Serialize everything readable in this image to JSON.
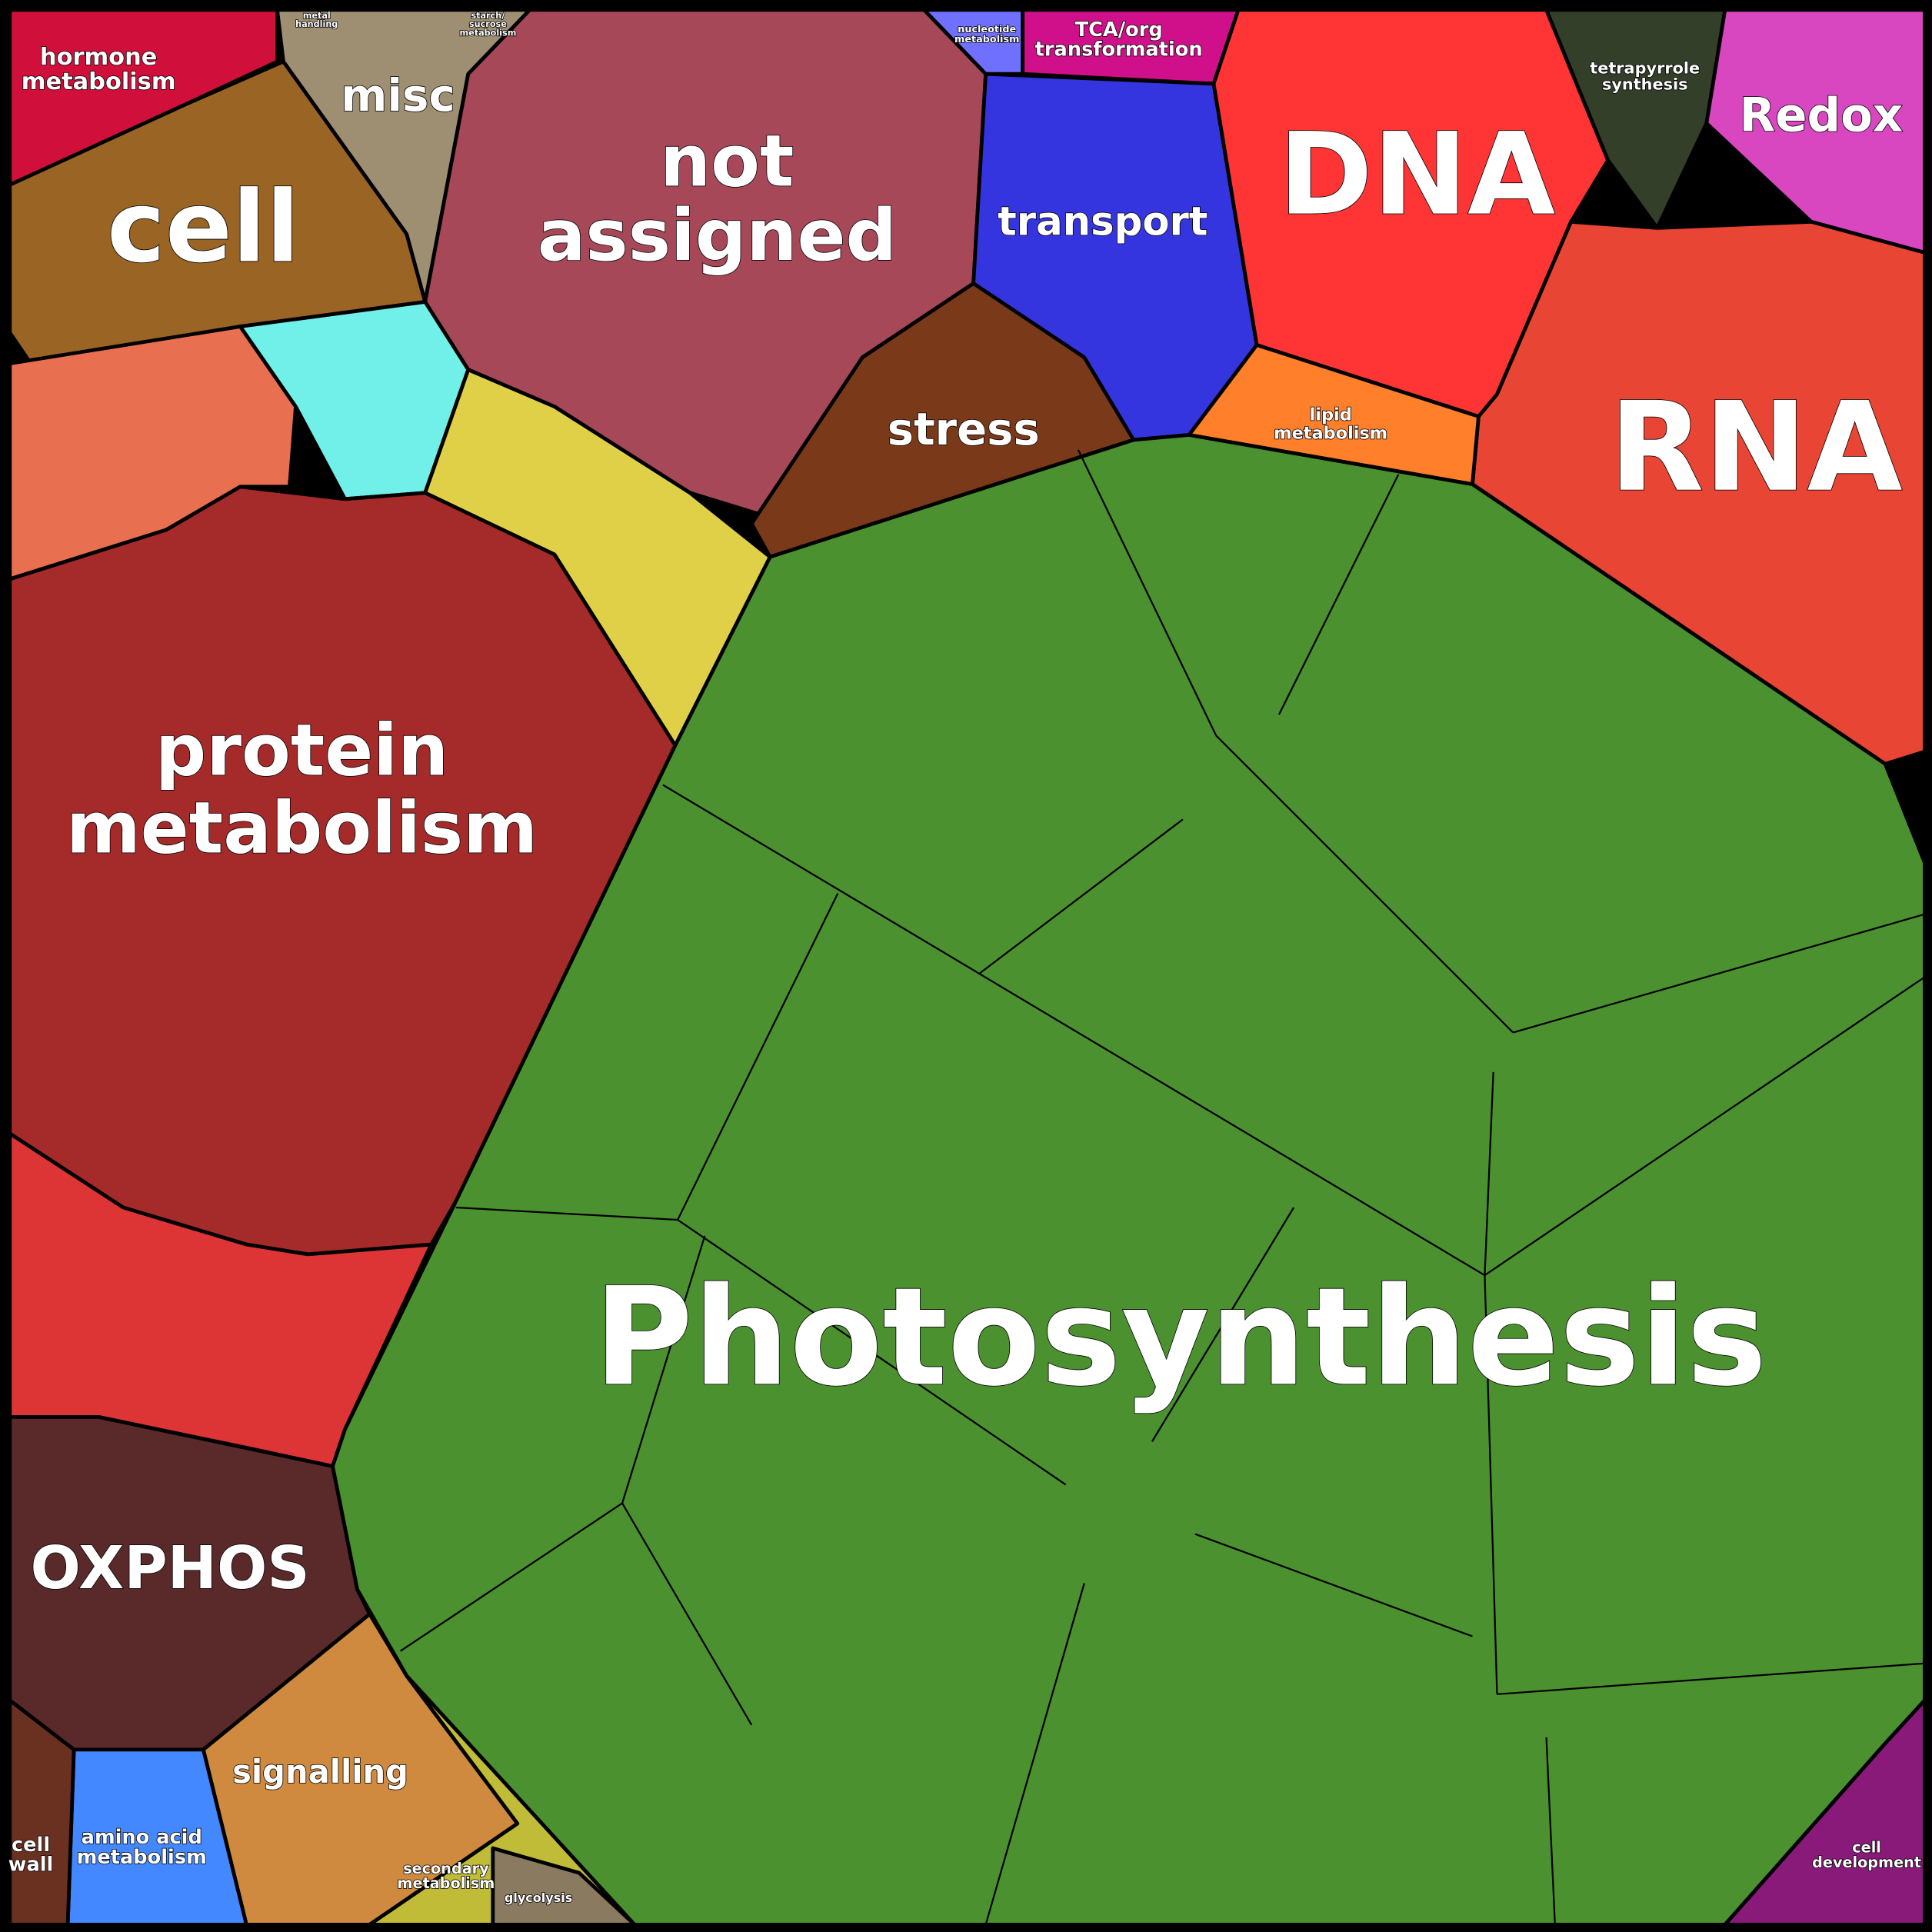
{
  "regions": [
    {
      "lines": [
        "hormone",
        "metabolism"
      ]
    },
    {
      "lines": [
        "misc"
      ]
    },
    {
      "lines": [
        "cell"
      ]
    },
    {
      "lines": [
        "not",
        "assigned"
      ]
    },
    {
      "lines": [
        "transport"
      ]
    },
    {
      "lines": [
        "DNA"
      ]
    },
    {
      "lines": [
        "tetrapyrrole",
        "synthesis"
      ]
    },
    {
      "lines": [
        "Redox"
      ]
    },
    {
      "lines": [
        "RNA"
      ]
    },
    {
      "lines": [
        "stress"
      ]
    },
    {
      "lines": [
        "lipid",
        "metabolism"
      ]
    },
    {
      "lines": [
        "TCA/org",
        "transformation"
      ]
    },
    {
      "lines": [
        "nucleotide",
        "metabolism"
      ]
    },
    {
      "lines": [
        "protein",
        "metabolism"
      ]
    },
    {
      "lines": [
        "Photosynthesis"
      ]
    },
    {
      "lines": [
        "OXPHOS"
      ]
    },
    {
      "lines": [
        "signalling"
      ]
    },
    {
      "lines": [
        "amino acid",
        "metabolism"
      ]
    },
    {
      "lines": [
        "cell",
        "wall"
      ]
    },
    {
      "lines": [
        "secondary",
        "metabolism"
      ]
    },
    {
      "lines": [
        "glycolysis"
      ]
    },
    {
      "lines": [
        "cell",
        "development"
      ]
    },
    {
      "lines": [
        "metal",
        "handling"
      ]
    },
    {
      "lines": [
        "starch/",
        "sucrose",
        "metabolism"
      ]
    }
  ]
}
